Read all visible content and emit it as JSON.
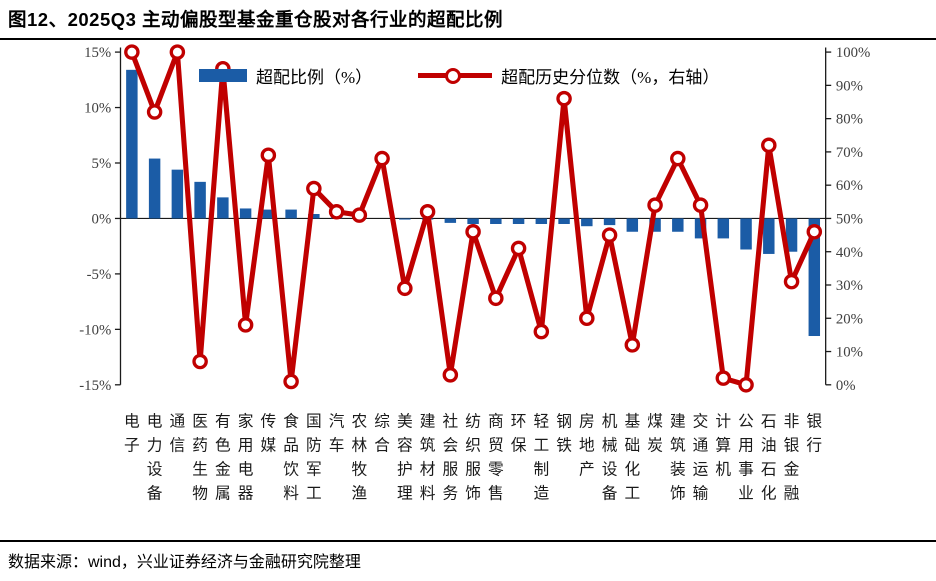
{
  "header": {
    "title": "图12、2025Q3 主动偏股型基金重仓股对各行业的超配比例"
  },
  "footer": {
    "text": "数据来源：wind，兴业证券经济与金融研究院整理"
  },
  "chart_data": {
    "type": "bar+line",
    "title": "2025Q3 主动偏股型基金重仓股对各行业的超配比例",
    "categories": [
      "电子",
      "电力设备",
      "通信",
      "医药生物",
      "有色金属",
      "家用电器",
      "传媒",
      "食品饮料",
      "国防军工",
      "汽车",
      "农林牧渔",
      "综合",
      "美容护理",
      "建筑材料",
      "社会服务",
      "纺织服饰",
      "商贸零售",
      "环保",
      "轻工制造",
      "钢铁",
      "房地产",
      "机械设备",
      "基础化工",
      "煤炭",
      "建筑装饰",
      "交通运输",
      "计算机",
      "公用事业",
      "石油石化",
      "非银金融",
      "银行"
    ],
    "series": [
      {
        "name": "超配比例（%）",
        "type": "bar",
        "axis": "left",
        "color": "#1B5CA6",
        "values": [
          13.4,
          5.4,
          4.4,
          3.3,
          1.9,
          0.9,
          0.8,
          0.8,
          0.4,
          0.1,
          0.0,
          0.0,
          -0.1,
          -0.1,
          -0.4,
          -0.5,
          -0.5,
          -0.5,
          -0.5,
          -0.5,
          -0.7,
          -0.6,
          -1.2,
          -1.2,
          -1.2,
          -1.8,
          -1.8,
          -2.8,
          -3.2,
          -3.0,
          -10.6
        ]
      },
      {
        "name": "超配历史分位数（%，右轴）",
        "type": "line",
        "axis": "right",
        "color": "#C00000",
        "values": [
          100,
          82,
          100,
          7,
          95,
          18,
          69,
          1,
          59,
          52,
          51,
          68,
          29,
          52,
          3,
          46,
          26,
          41,
          16,
          86,
          20,
          45,
          12,
          54,
          68,
          54,
          2,
          0,
          72,
          31,
          46
        ]
      }
    ],
    "left_axis": {
      "min": -15,
      "max": 15,
      "tick_step": 5,
      "tick_labels": [
        "15%",
        "10%",
        "5%",
        "0%",
        "-5%",
        "-10%",
        "-15%"
      ]
    },
    "right_axis": {
      "min": 0,
      "max": 100,
      "tick_step": 10,
      "tick_labels": [
        "100%",
        "90%",
        "80%",
        "70%",
        "60%",
        "50%",
        "40%",
        "30%",
        "20%",
        "10%",
        "0%"
      ]
    },
    "legend": {
      "position": "top",
      "bar_label": "超配比例（%）",
      "line_label": "超配历史分位数（%，右轴）"
    },
    "grid": false
  },
  "colors": {
    "bar": "#1B5CA6",
    "line": "#C00000",
    "axis": "#1a1a1a",
    "tick_label": "#404040",
    "category_label": "#1a1a1a"
  }
}
